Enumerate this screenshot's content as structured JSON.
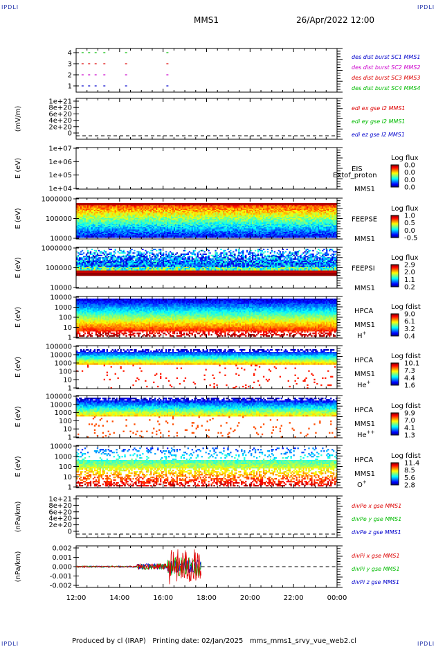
{
  "header": {
    "corner_label": "IPDLI",
    "mission": "MMS1",
    "datetime": "26/Apr/2022 12:00"
  },
  "footer": {
    "text": "Produced by cl (IRAP)   Printing date: 02/Jan/2025   mms_mms1_srvy_vue_web2.cl"
  },
  "colors": {
    "red": "#dd0000",
    "green": "#00bb00",
    "blue": "#0000cc",
    "magenta": "#cc00cc"
  },
  "chart_data": {
    "type": "multi-panel",
    "x_axis": {
      "ticks": [
        "12:00",
        "14:00",
        "16:00",
        "18:00",
        "20:00",
        "22:00",
        "00:00"
      ],
      "range_hours": [
        12,
        24
      ]
    },
    "panels": [
      {
        "id": "burst",
        "type": "scatter",
        "y_ticks": [
          "4",
          "3",
          "2",
          "1"
        ],
        "legend": [
          {
            "text": "des dist burst SC1 MMS1",
            "color": "#0000cc"
          },
          {
            "text": "des dist burst SC2 MMS2",
            "color": "#cc00cc"
          },
          {
            "text": "des dist burst SC3 MMS3",
            "color": "#dd0000"
          },
          {
            "text": "des dist burst SC4 MMS4",
            "color": "#00bb00"
          }
        ],
        "series": [
          {
            "name": "des dist burst SC4 MMS4",
            "y": 4,
            "x_hours": [
              12.25,
              12.55,
              12.85,
              13.25,
              14.25,
              16.15
            ]
          },
          {
            "name": "des dist burst SC3 MMS3",
            "y": 3,
            "x_hours": [
              12.25,
              12.55,
              12.85,
              13.25,
              14.25,
              16.15
            ]
          },
          {
            "name": "des dist burst SC2 MMS2",
            "y": 2,
            "x_hours": [
              12.25,
              12.55,
              12.85,
              13.25,
              14.25,
              16.15
            ]
          },
          {
            "name": "des dist burst SC1 MMS1",
            "y": 1,
            "x_hours": [
              12.25,
              12.55,
              12.85,
              13.25,
              14.25,
              16.15
            ]
          }
        ]
      },
      {
        "id": "edi",
        "type": "line",
        "ylabel": "(mV/m)",
        "y_ticks": [
          "1e+21",
          "8e+20",
          "6e+20",
          "4e+20",
          "2e+20",
          "0"
        ],
        "legend": [
          {
            "text": "edi ex gse l2 MMS1",
            "color": "#dd0000"
          },
          {
            "text": "edi ey gse l2 MMS1",
            "color": "#00bb00"
          },
          {
            "text": "edi ez gse l2 MMS1",
            "color": "#0000cc"
          }
        ]
      },
      {
        "id": "eis",
        "type": "heatmap",
        "ylabel": "E (eV)",
        "y_ticks": [
          "1e+07",
          "1e+06",
          "1e+05",
          "1e+04"
        ],
        "labels": [
          "EIS",
          "MMS1"
        ],
        "overlay_text": "Extof_proton",
        "cbar_title": "Log flux",
        "cbar_ticks": [
          "0.0",
          "0.0",
          "0.0",
          "0.0"
        ]
      },
      {
        "id": "feepse",
        "type": "heatmap",
        "ylabel": "E (eV)",
        "y_ticks": [
          "1000000",
          "100000",
          "10000"
        ],
        "labels": [
          "FEEPSE",
          "MMS1"
        ],
        "cbar_title": "Log flux",
        "cbar_ticks": [
          "1.0",
          "0.5",
          "0.0",
          "-0.5"
        ]
      },
      {
        "id": "feepsi",
        "type": "heatmap",
        "ylabel": "E (eV)",
        "y_ticks": [
          "1000000",
          "100000",
          "10000"
        ],
        "labels": [
          "FEEPSI",
          "MMS1"
        ],
        "cbar_title": "Log flux",
        "cbar_ticks": [
          "2.9",
          "2.0",
          "1.1",
          "0.2"
        ]
      },
      {
        "id": "hpca_h",
        "type": "heatmap",
        "ylabel": "E (eV)",
        "y_ticks": [
          "10000",
          "1000",
          "100",
          "10",
          "1"
        ],
        "labels": [
          "HPCA",
          "MMS1"
        ],
        "species": "H",
        "species_sup": "+",
        "cbar_title": "Log fdist",
        "cbar_ticks": [
          "9.0",
          "6.1",
          "3.2",
          "0.4"
        ]
      },
      {
        "id": "hpca_he",
        "type": "heatmap",
        "ylabel": "E (eV)",
        "y_ticks": [
          "100000",
          "10000",
          "1000",
          "100",
          "10",
          "1"
        ],
        "labels": [
          "HPCA",
          "MMS1"
        ],
        "species": "He",
        "species_sup": "+",
        "cbar_title": "Log fdist",
        "cbar_ticks": [
          "10.1",
          "7.3",
          "4.4",
          "1.6"
        ]
      },
      {
        "id": "hpca_hepp",
        "type": "heatmap",
        "ylabel": "E (eV)",
        "y_ticks": [
          "100000",
          "10000",
          "1000",
          "100",
          "10",
          "1"
        ],
        "labels": [
          "HPCA",
          "MMS1"
        ],
        "species": "He",
        "species_sup": "++",
        "cbar_title": "Log fdist",
        "cbar_ticks": [
          "9.9",
          "7.0",
          "4.1",
          "1.3"
        ]
      },
      {
        "id": "hpca_o",
        "type": "heatmap",
        "ylabel": "E (eV)",
        "y_ticks": [
          "10000",
          "1000",
          "100",
          "10",
          "1"
        ],
        "labels": [
          "HPCA",
          "MMS1"
        ],
        "species": "O",
        "species_sup": "+",
        "cbar_title": "Log fdist",
        "cbar_ticks": [
          "11.4",
          "8.5",
          "5.6",
          "2.8"
        ]
      },
      {
        "id": "divpe",
        "type": "line",
        "ylabel": "(nPa/km)",
        "y_ticks": [
          "1e+21",
          "8e+20",
          "6e+20",
          "4e+20",
          "2e+20",
          "0"
        ],
        "legend": [
          {
            "text": "divPe x gse MMS1",
            "color": "#dd0000"
          },
          {
            "text": "divPe y gse MMS1",
            "color": "#00bb00"
          },
          {
            "text": "divPe z gse MMS1",
            "color": "#0000cc"
          }
        ]
      },
      {
        "id": "divpi",
        "type": "line",
        "ylabel": "(nPa/km)",
        "y_ticks": [
          "0.002",
          "0.001",
          "0.000",
          "-0.001",
          "-0.002"
        ],
        "ylim": [
          -0.002,
          0.002
        ],
        "data_x_range_hours": [
          12,
          17.75
        ],
        "legend": [
          {
            "text": "divPi x gse MMS1",
            "color": "#dd0000"
          },
          {
            "text": "divPi y gse MMS1",
            "color": "#00bb00"
          },
          {
            "text": "divPi z gse MMS1",
            "color": "#0000cc"
          }
        ]
      }
    ]
  }
}
